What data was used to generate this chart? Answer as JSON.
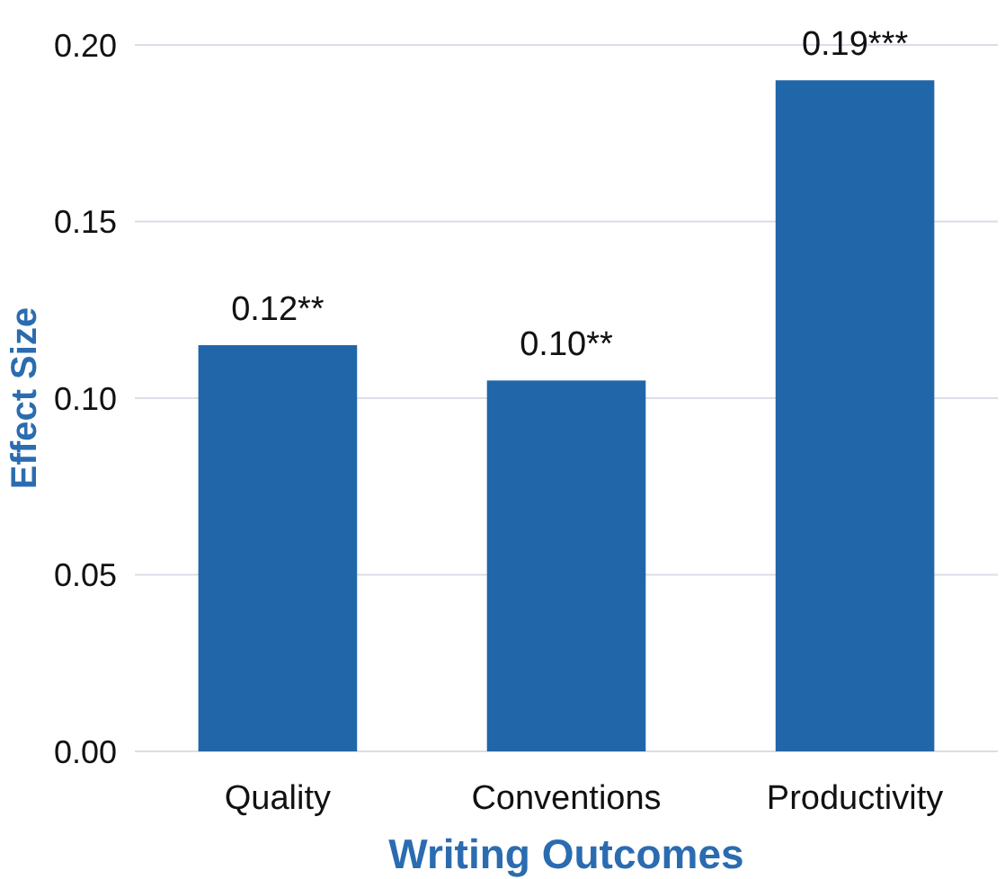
{
  "chart_data": {
    "type": "bar",
    "xlabel": "Writing Outcomes",
    "ylabel": "Effect Size",
    "categories": [
      "Quality",
      "Conventions",
      "Productivity"
    ],
    "values": [
      0.115,
      0.105,
      0.19
    ],
    "value_labels": [
      "0.12**",
      "0.10**",
      "0.19***"
    ],
    "color": "#2166a8",
    "ylim": [
      0,
      0.2
    ],
    "yticks": [
      {
        "value": 0,
        "label": "0.00"
      },
      {
        "value": 0.05,
        "label": "0.05"
      },
      {
        "value": 0.1,
        "label": "0.10"
      },
      {
        "value": 0.15,
        "label": "0.15"
      },
      {
        "value": 0.2,
        "label": "0.20"
      }
    ],
    "grid": "y"
  }
}
